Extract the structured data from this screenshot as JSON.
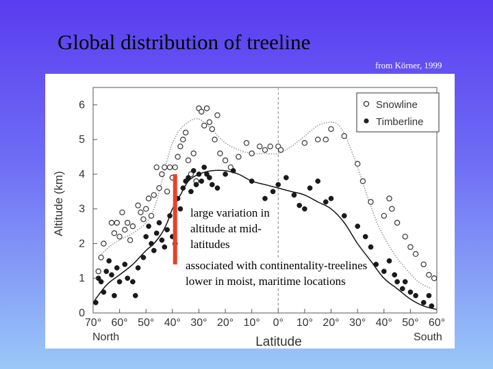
{
  "slide": {
    "title": "Global distribution of treeline",
    "source": "from Körner, 1999"
  },
  "annotations": [
    "large variation in altitude at mid-latitudes",
    "associated with continentality-treelines lower in moist, maritime locations"
  ],
  "colors": {
    "background_top": "#5a3cf0",
    "background_bottom": "#9ac8f8",
    "highlight_bar": "#e8402a",
    "snowline_curve": "#999999",
    "timberline_curve": "#111111"
  },
  "chart_data": {
    "type": "scatter",
    "xlabel": "Latitude",
    "ylabel": "Altitude (km)",
    "xlim": [
      70,
      -60
    ],
    "ylim": [
      0,
      6.5
    ],
    "x_ticks": [
      70,
      60,
      50,
      40,
      30,
      20,
      10,
      0,
      -10,
      -20,
      -30,
      -40,
      -50,
      -60
    ],
    "x_tick_labels": [
      "70°",
      "60°",
      "50°",
      "40°",
      "30°",
      "20°",
      "10°",
      "0°",
      "10°",
      "20°",
      "30°",
      "40°",
      "50°",
      "60°"
    ],
    "y_ticks": [
      0,
      1,
      2,
      3,
      4,
      5,
      6
    ],
    "y_tick_labels": [
      "0",
      "1",
      "2",
      "3",
      "4",
      "5",
      "6"
    ],
    "x_end_labels": [
      "North",
      "South"
    ],
    "equator_line_x": 0,
    "highlight_bar": {
      "x": 39,
      "y_from": 1.4,
      "y_to": 4.0
    },
    "legend": {
      "position": "top-right",
      "entries": [
        "Snowline",
        "Timberline"
      ]
    },
    "series": [
      {
        "name": "Snowline",
        "marker": "open-circle",
        "points": [
          [
            68,
            1.2
          ],
          [
            67,
            1.6
          ],
          [
            66,
            2.0
          ],
          [
            63,
            2.6
          ],
          [
            62,
            2.3
          ],
          [
            61,
            2.6
          ],
          [
            60,
            2.2
          ],
          [
            59,
            2.9
          ],
          [
            58,
            2.4
          ],
          [
            57,
            2.6
          ],
          [
            56,
            2.1
          ],
          [
            55,
            2.5
          ],
          [
            53,
            3.1
          ],
          [
            52,
            2.9
          ],
          [
            51,
            2.7
          ],
          [
            50,
            3.0
          ],
          [
            49,
            3.3
          ],
          [
            48,
            2.8
          ],
          [
            47,
            3.4
          ],
          [
            46,
            4.2
          ],
          [
            45,
            3.6
          ],
          [
            44,
            4.0
          ],
          [
            43,
            4.2
          ],
          [
            42,
            3.5
          ],
          [
            41,
            4.2
          ],
          [
            40,
            3.9
          ],
          [
            39,
            4.2
          ],
          [
            38,
            4.5
          ],
          [
            37,
            4.8
          ],
          [
            36,
            5.0
          ],
          [
            35,
            5.2
          ],
          [
            34,
            4.4
          ],
          [
            33,
            4.0
          ],
          [
            32,
            4.6
          ],
          [
            31,
            3.8
          ],
          [
            30,
            5.9
          ],
          [
            29,
            5.8
          ],
          [
            28,
            5.4
          ],
          [
            27,
            5.9
          ],
          [
            26,
            5.5
          ],
          [
            25,
            5.3
          ],
          [
            24,
            5.0
          ],
          [
            23,
            5.7
          ],
          [
            22,
            4.6
          ],
          [
            20,
            4.4
          ],
          [
            18,
            4.2
          ],
          [
            15,
            4.5
          ],
          [
            12,
            4.9
          ],
          [
            10,
            4.6
          ],
          [
            7,
            4.8
          ],
          [
            5,
            4.7
          ],
          [
            3,
            4.8
          ],
          [
            0,
            4.8
          ],
          [
            -1,
            4.7
          ],
          [
            -10,
            4.9
          ],
          [
            -15,
            5.0
          ],
          [
            -18,
            5.0
          ],
          [
            -20,
            5.3
          ],
          [
            -25,
            5.1
          ],
          [
            -30,
            4.3
          ],
          [
            -32,
            3.8
          ],
          [
            -35,
            3.2
          ],
          [
            -40,
            2.8
          ],
          [
            -42,
            3.3
          ],
          [
            -43,
            3.0
          ],
          [
            -45,
            2.6
          ],
          [
            -48,
            2.2
          ],
          [
            -50,
            1.9
          ],
          [
            -52,
            1.7
          ],
          [
            -55,
            1.4
          ],
          [
            -57,
            1.1
          ],
          [
            -59,
            1.0
          ]
        ]
      },
      {
        "name": "Timberline",
        "marker": "filled-circle",
        "points": [
          [
            69,
            0.3
          ],
          [
            68,
            1.0
          ],
          [
            67,
            0.9
          ],
          [
            66,
            0.6
          ],
          [
            65,
            1.2
          ],
          [
            64,
            1.5
          ],
          [
            63,
            1.1
          ],
          [
            62,
            0.5
          ],
          [
            61,
            1.3
          ],
          [
            60,
            0.9
          ],
          [
            58,
            1.4
          ],
          [
            57,
            1.0
          ],
          [
            55,
            0.9
          ],
          [
            54,
            0.5
          ],
          [
            53,
            1.3
          ],
          [
            51,
            1.6
          ],
          [
            50,
            2.2
          ],
          [
            49,
            2.5
          ],
          [
            48,
            2.0
          ],
          [
            47,
            1.8
          ],
          [
            46,
            2.3
          ],
          [
            45,
            2.6
          ],
          [
            44,
            2.1
          ],
          [
            43,
            1.9
          ],
          [
            42,
            2.4
          ],
          [
            41,
            2.8
          ],
          [
            40,
            2.2
          ],
          [
            39,
            2.0
          ],
          [
            38,
            3.3
          ],
          [
            37,
            3.0
          ],
          [
            36,
            3.6
          ],
          [
            35,
            3.8
          ],
          [
            34,
            3.9
          ],
          [
            33,
            3.5
          ],
          [
            32,
            4.1
          ],
          [
            31,
            3.7
          ],
          [
            30,
            4.0
          ],
          [
            29,
            3.8
          ],
          [
            28,
            4.2
          ],
          [
            27,
            4.0
          ],
          [
            26,
            3.9
          ],
          [
            25,
            3.7
          ],
          [
            23,
            3.6
          ],
          [
            20,
            4.0
          ],
          [
            17,
            4.1
          ],
          [
            10,
            3.8
          ],
          [
            5,
            3.3
          ],
          [
            2,
            3.5
          ],
          [
            0,
            3.7
          ],
          [
            -3,
            3.9
          ],
          [
            -6,
            3.4
          ],
          [
            -8,
            3.1
          ],
          [
            -10,
            3.0
          ],
          [
            -12,
            3.6
          ],
          [
            -15,
            3.8
          ],
          [
            -18,
            3.2
          ],
          [
            -20,
            3.3
          ],
          [
            -25,
            2.8
          ],
          [
            -30,
            2.5
          ],
          [
            -33,
            2.2
          ],
          [
            -35,
            1.9
          ],
          [
            -37,
            1.4
          ],
          [
            -40,
            1.2
          ],
          [
            -42,
            1.5
          ],
          [
            -44,
            1.1
          ],
          [
            -45,
            0.9
          ],
          [
            -47,
            0.7
          ],
          [
            -48,
            0.9
          ],
          [
            -50,
            0.6
          ],
          [
            -52,
            0.5
          ],
          [
            -55,
            0.3
          ],
          [
            -57,
            0.5
          ],
          [
            -58,
            0.2
          ]
        ]
      }
    ],
    "curves": [
      {
        "name": "Snowline",
        "style": "dotted",
        "points": [
          [
            68,
            1.6
          ],
          [
            64,
            1.9
          ],
          [
            60,
            2.1
          ],
          [
            55,
            2.3
          ],
          [
            50,
            2.6
          ],
          [
            47,
            3.0
          ],
          [
            44,
            3.8
          ],
          [
            42,
            4.4
          ],
          [
            40,
            4.9
          ],
          [
            37,
            5.3
          ],
          [
            34,
            5.5
          ],
          [
            31,
            5.6
          ],
          [
            28,
            5.5
          ],
          [
            24,
            5.2
          ],
          [
            20,
            4.9
          ],
          [
            15,
            4.7
          ],
          [
            10,
            4.6
          ],
          [
            5,
            4.6
          ],
          [
            0,
            4.6
          ],
          [
            -5,
            4.8
          ],
          [
            -10,
            5.1
          ],
          [
            -15,
            5.4
          ],
          [
            -20,
            5.5
          ],
          [
            -23,
            5.4
          ],
          [
            -26,
            5.0
          ],
          [
            -30,
            4.2
          ],
          [
            -34,
            3.3
          ],
          [
            -38,
            2.5
          ],
          [
            -43,
            1.8
          ],
          [
            -48,
            1.3
          ],
          [
            -53,
            0.9
          ],
          [
            -58,
            0.7
          ]
        ]
      },
      {
        "name": "Timberline",
        "style": "solid",
        "points": [
          [
            70,
            0.3
          ],
          [
            65,
            0.8
          ],
          [
            60,
            1.1
          ],
          [
            55,
            1.4
          ],
          [
            50,
            1.8
          ],
          [
            47,
            2.0
          ],
          [
            44,
            2.3
          ],
          [
            42,
            2.6
          ],
          [
            40,
            3.0
          ],
          [
            37,
            3.4
          ],
          [
            34,
            3.8
          ],
          [
            30,
            4.0
          ],
          [
            25,
            4.1
          ],
          [
            20,
            4.1
          ],
          [
            15,
            4.0
          ],
          [
            10,
            3.8
          ],
          [
            5,
            3.7
          ],
          [
            0,
            3.6
          ],
          [
            -5,
            3.5
          ],
          [
            -10,
            3.4
          ],
          [
            -15,
            3.2
          ],
          [
            -20,
            3.0
          ],
          [
            -25,
            2.6
          ],
          [
            -30,
            2.0
          ],
          [
            -35,
            1.5
          ],
          [
            -40,
            1.0
          ],
          [
            -45,
            0.7
          ],
          [
            -50,
            0.4
          ],
          [
            -55,
            0.2
          ],
          [
            -60,
            0.1
          ]
        ]
      }
    ]
  }
}
